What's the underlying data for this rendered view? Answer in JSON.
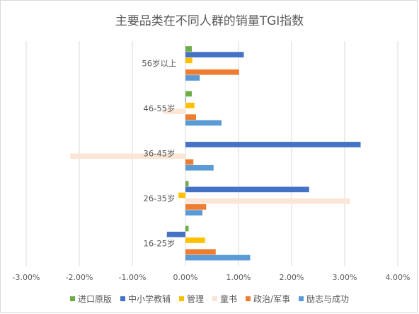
{
  "chart_data": {
    "type": "bar",
    "orientation": "horizontal",
    "title": "主要品类在不同人群的销量TGI指数",
    "categories": [
      "56岁以上",
      "46-55岁",
      "36-45岁",
      "26-35岁",
      "16-25岁"
    ],
    "series": [
      {
        "name": "进口原版",
        "color": "#70ad47",
        "values": [
          0.0012,
          0.0012,
          0.0,
          0.0006,
          0.0006
        ]
      },
      {
        "name": "中小学教辅",
        "color": "#4472c4",
        "values": [
          0.011,
          0.0001,
          0.033,
          0.0233,
          -0.0035
        ]
      },
      {
        "name": "管理",
        "color": "#ffc000",
        "values": [
          0.0013,
          0.0017,
          0.0,
          -0.0013,
          0.0037
        ]
      },
      {
        "name": "童书",
        "color": "#fbe5d6",
        "values": [
          0.0,
          -0.0042,
          -0.0217,
          0.031,
          0.0
        ]
      },
      {
        "name": "政治/军事",
        "color": "#ed7d31",
        "values": [
          0.0101,
          0.002,
          0.0015,
          0.0039,
          0.0057
        ]
      },
      {
        "name": "励志与成功",
        "color": "#5b9bd5",
        "values": [
          0.0027,
          0.0068,
          0.0053,
          0.0032,
          0.0122
        ]
      }
    ],
    "xlim": [
      -0.03,
      0.04
    ],
    "xticks": [
      -0.03,
      -0.02,
      -0.01,
      0.0,
      0.01,
      0.02,
      0.03,
      0.04
    ],
    "xtick_labels": [
      "-3.00%",
      "-2.00%",
      "-1.00%",
      "0.00%",
      "1.00%",
      "2.00%",
      "3.00%",
      "4.00%"
    ],
    "grid": "vertical",
    "legend_position": "bottom"
  }
}
